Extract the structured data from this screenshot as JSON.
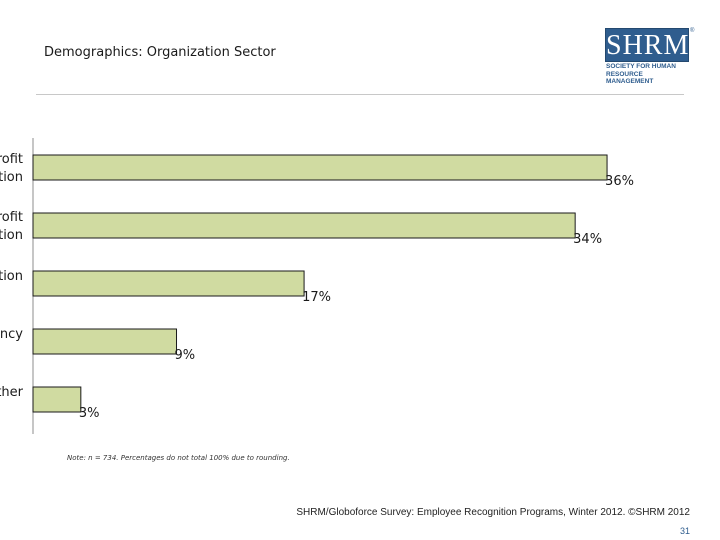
{
  "slide": {
    "title": "Demographics: Organization Sector",
    "note": "Note: n = 734. Percentages do not total 100% due to rounding.",
    "source": "SHRM/Globoforce Survey: Employee Recognition Programs, Winter 2012. ©SHRM 2012",
    "page_number": "31"
  },
  "logo": {
    "wordmark": "SHRM",
    "tagline_line1": "SOCIETY FOR HUMAN",
    "tagline_line2": "RESOURCE MANAGEMENT",
    "registered": "®"
  },
  "colors": {
    "bar_fill": "#d0dba1",
    "bar_stroke": "#1a1a1a",
    "brand": "#2f5d8e"
  },
  "chart_data": {
    "type": "bar",
    "orientation": "horizontal",
    "title": "Demographics: Organization Sector",
    "categories": [
      "rofit\ntion",
      "rofit\ntion",
      "tion",
      "ncy",
      "ther"
    ],
    "values": [
      36,
      34,
      17,
      9,
      3
    ],
    "value_labels": [
      "36%",
      "34%",
      "17%",
      "9%",
      "3%"
    ],
    "xlim": [
      0,
      37
    ],
    "grid": false,
    "legend": "none"
  }
}
